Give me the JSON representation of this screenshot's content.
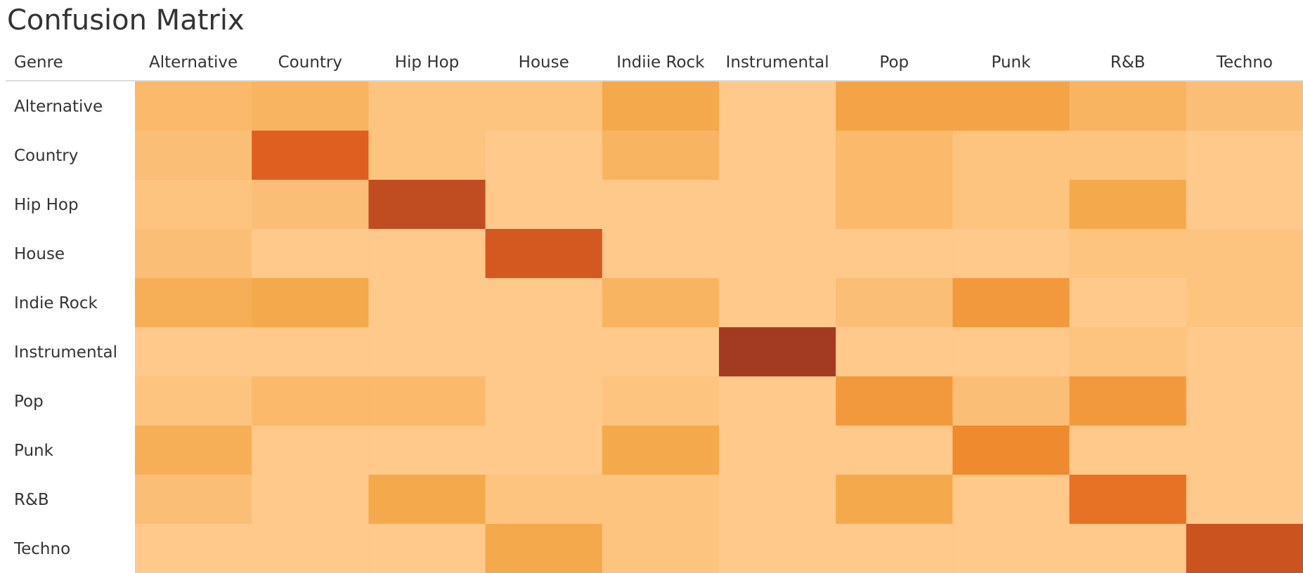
{
  "chart_data": {
    "type": "heatmap",
    "title": "Confusion Matrix",
    "row_header": "Genre",
    "columns": [
      "Alternative",
      "Country",
      "Hip Hop",
      "House",
      "Indiie Rock",
      "Instrumental",
      "Pop",
      "Punk",
      "R&B",
      "Techno"
    ],
    "rows": [
      "Alternative",
      "Country",
      "Hip Hop",
      "House",
      "Indie Rock",
      "Instrumental",
      "Pop",
      "Punk",
      "R&B",
      "Techno"
    ],
    "values": [
      [
        3,
        4,
        1,
        1,
        6,
        0,
        7,
        7,
        4,
        2
      ],
      [
        2,
        19,
        1,
        0,
        4,
        0,
        3,
        1,
        1,
        0
      ],
      [
        1,
        2,
        22,
        0,
        0,
        0,
        3,
        1,
        6,
        0
      ],
      [
        2,
        0,
        0,
        20,
        0,
        0,
        0,
        0,
        1,
        1
      ],
      [
        5,
        6,
        0,
        0,
        4,
        0,
        2,
        9,
        0,
        1
      ],
      [
        0,
        0,
        0,
        0,
        0,
        25,
        0,
        0,
        1,
        0
      ],
      [
        1,
        3,
        3,
        0,
        1,
        0,
        9,
        2,
        9,
        0
      ],
      [
        5,
        0,
        0,
        0,
        6,
        0,
        0,
        12,
        0,
        0
      ],
      [
        2,
        0,
        6,
        1,
        1,
        0,
        6,
        0,
        16,
        0
      ],
      [
        0,
        0,
        0,
        6,
        1,
        0,
        0,
        0,
        0,
        21
      ]
    ],
    "value_range": [
      0,
      25
    ],
    "color_scale": [
      "#fec98a",
      "#f5a84a",
      "#f0872c",
      "#e0601f",
      "#a33b22"
    ]
  }
}
